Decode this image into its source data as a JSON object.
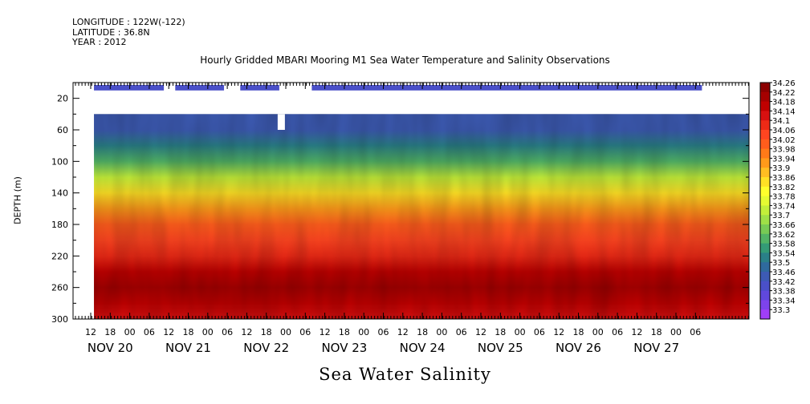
{
  "meta": {
    "longitude": "LONGITUDE : 122W(-122)",
    "latitude": "LATITUDE : 36.8N",
    "year": "YEAR : 2012"
  },
  "title": "Hourly Gridded MBARI Mooring M1 Sea Water Temperature and Salinity Observations",
  "footer_title": "Sea Water Salinity",
  "chart_data": {
    "type": "heatmap",
    "title": "Hourly Gridded MBARI Mooring M1 Sea Water Temperature and Salinity Observations",
    "xlabel": "",
    "ylabel": "DEPTH (m)",
    "ylim": [
      300,
      0
    ],
    "y_ticks": [
      20,
      60,
      100,
      140,
      180,
      220,
      260,
      300
    ],
    "x_hour_ticks": [
      "12",
      "18",
      "00",
      "06",
      "12",
      "18",
      "00",
      "06",
      "12",
      "18",
      "00",
      "06",
      "12",
      "18",
      "00",
      "06",
      "12",
      "18",
      "00",
      "06",
      "12",
      "18",
      "00",
      "06",
      "12",
      "18",
      "00",
      "06",
      "12",
      "18",
      "00",
      "06"
    ],
    "x_day_labels": [
      "NOV 20",
      "NOV 21",
      "NOV 22",
      "NOV 23",
      "NOV 24",
      "NOV 25",
      "NOV 26",
      "NOV 27"
    ],
    "colorbar": {
      "levels": [
        34.26,
        34.22,
        34.18,
        34.14,
        34.1,
        34.06,
        34.02,
        33.98,
        33.94,
        33.9,
        33.86,
        33.82,
        33.78,
        33.74,
        33.7,
        33.66,
        33.62,
        33.58,
        33.54,
        33.5,
        33.46,
        33.42,
        33.38,
        33.34,
        33.3
      ],
      "colors": [
        "#8b0000",
        "#a50000",
        "#c00000",
        "#d81010",
        "#ee2a16",
        "#ff4520",
        "#ff5d1c",
        "#ff7a18",
        "#ff9a1a",
        "#ffbe22",
        "#ffe125",
        "#ffff2c",
        "#e6fb32",
        "#c3ef3a",
        "#9fe047",
        "#78cb55",
        "#52b466",
        "#349b76",
        "#2a8088",
        "#2f6a9e",
        "#3d5bb4",
        "#4a50c8",
        "#6048dc",
        "#7d43ec",
        "#a03ef8"
      ]
    },
    "series": [
      {
        "name": "",
        "profile_depth": [
          10,
          40,
          60,
          80,
          100,
          120,
          140,
          160,
          180,
          200,
          220,
          240,
          260,
          280,
          300
        ],
        "profile_values": [
          33.44,
          33.46,
          33.48,
          33.54,
          33.64,
          33.76,
          33.88,
          33.96,
          34.02,
          34.08,
          34.13,
          34.18,
          34.22,
          34.19,
          34.16
        ]
      }
    ],
    "data_gaps": [
      {
        "from": "NOV 20 00",
        "to": "NOV 20 13",
        "depth": [
          0,
          300
        ]
      },
      {
        "from": "NOV 20 13",
        "to": "NOV 27 06",
        "depth": [
          15,
          40
        ]
      }
    ],
    "grid": false,
    "legend": "right"
  }
}
